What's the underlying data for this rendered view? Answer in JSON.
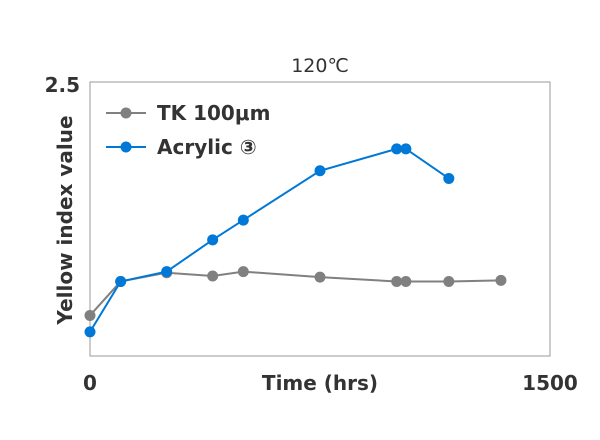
{
  "chart_data": {
    "type": "line",
    "title": "120℃",
    "xlabel": "Time (hrs)",
    "ylabel": "Yellow index value",
    "xlim": [
      0,
      1500
    ],
    "ylim": [
      0,
      2.5
    ],
    "x_tick_labels": [
      "0",
      "1500"
    ],
    "y_tick_labels": [
      "2.5"
    ],
    "grid": false,
    "legend_position": "top-left",
    "series": [
      {
        "name": "TK 100μm",
        "color": "#808080",
        "x": [
          0,
          100,
          250,
          400,
          500,
          750,
          1000,
          1030,
          1170,
          1340
        ],
        "y": [
          0.37,
          0.68,
          0.76,
          0.73,
          0.77,
          0.72,
          0.68,
          0.68,
          0.68,
          0.69
        ]
      },
      {
        "name": "Acrylic ③",
        "color": "#0078D7",
        "x": [
          0,
          100,
          250,
          400,
          500,
          750,
          1000,
          1030,
          1170
        ],
        "y": [
          0.22,
          0.68,
          0.77,
          1.06,
          1.24,
          1.69,
          1.89,
          1.89,
          1.62
        ]
      }
    ]
  }
}
